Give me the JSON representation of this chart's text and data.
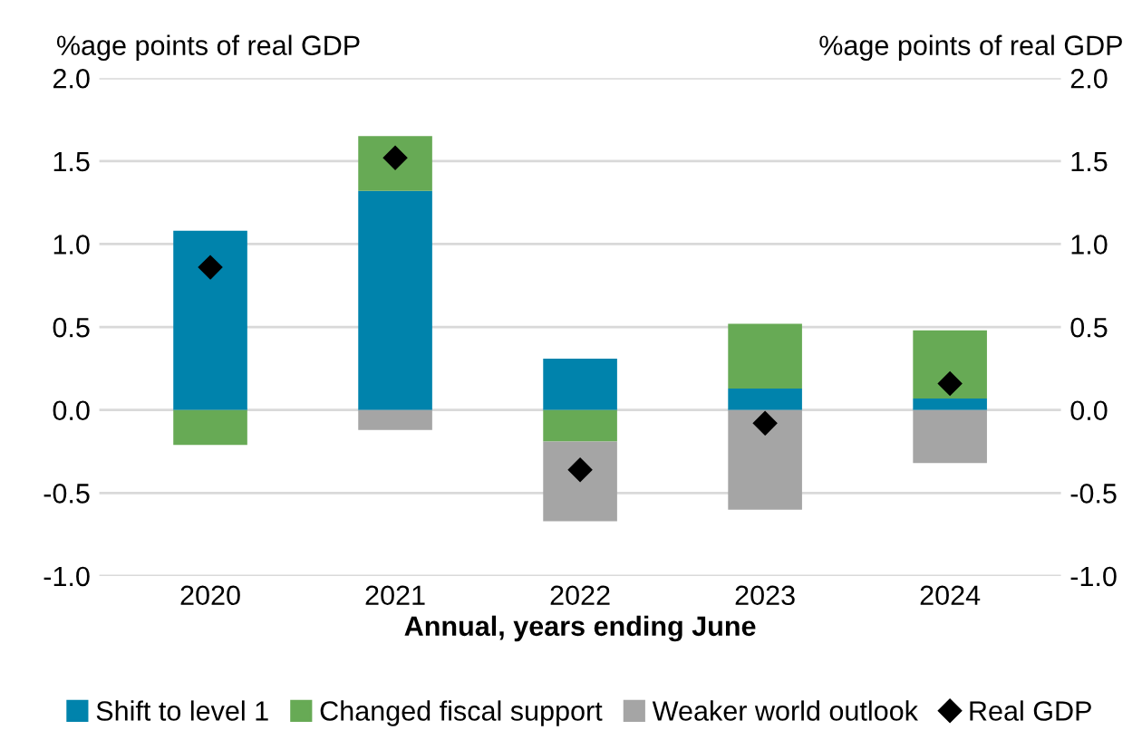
{
  "chart_data": {
    "type": "bar",
    "stacked": true,
    "categories": [
      "2020",
      "2021",
      "2022",
      "2023",
      "2024"
    ],
    "xlabel": "Annual, years ending June",
    "ylabel": "%age points of real GDP",
    "y2label": "%age points of real GDP",
    "series": [
      {
        "name": "Shift to level 1",
        "color": "#0083ac",
        "values": [
          1.08,
          1.32,
          0.31,
          0.13,
          0.07
        ]
      },
      {
        "name": "Changed fiscal support",
        "color": "#67aa55",
        "values": [
          -0.21,
          0.33,
          -0.19,
          0.39,
          0.41
        ]
      },
      {
        "name": "Weaker world outlook",
        "color": "#a5a5a5",
        "values": [
          0,
          -0.12,
          -0.48,
          -0.6,
          -0.32
        ]
      },
      {
        "name": "Real GDP",
        "type": "scatter",
        "color": "#000000",
        "marker": "diamond",
        "values": [
          0.86,
          1.52,
          -0.36,
          -0.08,
          0.16
        ]
      }
    ],
    "ylim": [
      -1.0,
      2.0
    ],
    "yticks": [
      {
        "value": -1.0,
        "label": "-1.0"
      },
      {
        "value": -0.5,
        "label": "-0.5"
      },
      {
        "value": 0,
        "label": "0.0"
      },
      {
        "value": 0.5,
        "label": "0.5"
      },
      {
        "value": 1.0,
        "label": "1.0"
      },
      {
        "value": 1.5,
        "label": "1.5"
      },
      {
        "value": 2.0,
        "label": "2.0"
      }
    ],
    "y2lim": [
      -1.0,
      2.0
    ],
    "y2ticks": [
      {
        "value": -1.0,
        "label": "-1.0"
      },
      {
        "value": -0.5,
        "label": "-0.5"
      },
      {
        "value": 0,
        "label": "0.0"
      },
      {
        "value": 0.5,
        "label": "0.5"
      },
      {
        "value": 1.0,
        "label": "1.0"
      },
      {
        "value": 1.5,
        "label": "1.5"
      },
      {
        "value": 2.0,
        "label": "2.0"
      }
    ],
    "grid": "y",
    "legend": "bottom"
  }
}
